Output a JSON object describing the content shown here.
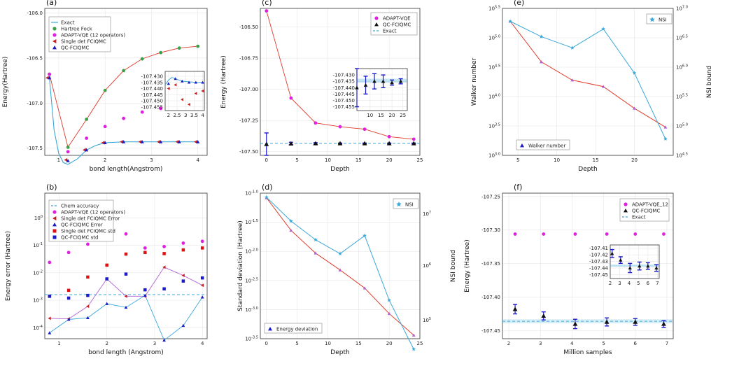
{
  "colors": {
    "exact": "#3aa8d8",
    "hf": "#3aa04a",
    "adapt": "#e020e0",
    "singledet": "#c81e1e",
    "qc": "#1a1ac8",
    "red_line": "#e03a2a",
    "blue_line": "#3aa8d8",
    "purple_line": "#b060d0",
    "black": "#111111",
    "red_sq": "#dd1111"
  },
  "chart_data": [
    {
      "panel": "(a)",
      "type": "line",
      "xlabel": "bond length(Angstrom)",
      "ylabel": "Energy(Hartree)",
      "xlim": [
        0.7,
        4.2
      ],
      "ylim": [
        -107.58,
        -105.95
      ],
      "xticks": [
        1,
        2,
        3,
        4
      ],
      "yticks": [
        -106.0,
        -106.5,
        -107.0,
        -107.5
      ],
      "ytick_labels": [
        "-106.0",
        "-106.5",
        "-107.0",
        "-107.5"
      ],
      "legend": [
        "Exact",
        "Hartree Fock",
        "ADAPT-VQE (12 operators)",
        "Single det FCIQMC",
        "QC-FCIQMC"
      ],
      "series": [
        {
          "name": "Exact",
          "kind": "line",
          "x": [
            0.8,
            0.9,
            1.0,
            1.1,
            1.2,
            1.4,
            1.6,
            1.8,
            2.0,
            2.4,
            2.8,
            3.2,
            3.6,
            4.0
          ],
          "y": [
            -106.72,
            -107.3,
            -107.56,
            -107.66,
            -107.68,
            -107.62,
            -107.52,
            -107.47,
            -107.44,
            -107.43,
            -107.43,
            -107.43,
            -107.43,
            -107.43
          ]
        },
        {
          "name": "Hartree Fock",
          "kind": "line-dots",
          "x": [
            0.8,
            1.2,
            1.6,
            2.0,
            2.4,
            2.8,
            3.2,
            3.6,
            4.0
          ],
          "y": [
            -106.68,
            -107.49,
            -107.18,
            -106.86,
            -106.64,
            -106.51,
            -106.44,
            -106.39,
            -106.37
          ]
        },
        {
          "name": "ADAPT-VQE (12 operators)",
          "kind": "dots",
          "x": [
            0.8,
            1.2,
            1.6,
            2.0,
            2.4,
            2.8,
            3.2,
            3.6,
            4.0
          ],
          "y": [
            -106.68,
            -107.54,
            -107.39,
            -107.26,
            -107.17,
            -107.1,
            -107.06,
            -107.03,
            -107.01
          ]
        },
        {
          "name": "Single det FCIQMC",
          "kind": "tri-left",
          "x": [
            0.8,
            1.2,
            1.6,
            2.0,
            2.4,
            2.8,
            3.2,
            3.6,
            4.0
          ],
          "y": [
            -106.72,
            -107.63,
            -107.52,
            -107.44,
            -107.43,
            -107.43,
            -107.43,
            -107.43,
            -107.43
          ]
        },
        {
          "name": "QC-FCIQMC",
          "kind": "tri-up",
          "x": [
            0.8,
            1.2,
            1.6,
            2.0,
            2.4,
            2.8,
            3.2,
            3.6,
            4.0
          ],
          "y": [
            -106.72,
            -107.64,
            -107.52,
            -107.44,
            -107.43,
            -107.43,
            -107.43,
            -107.43,
            -107.43
          ]
        }
      ],
      "inset": {
        "xlim": [
          1.8,
          4.1
        ],
        "ylim": [
          -107.458,
          -107.426
        ],
        "xticks": [
          2.0,
          2.5,
          3.0,
          3.5,
          4.0
        ],
        "yticks": [
          -107.43,
          -107.435,
          -107.44,
          -107.445,
          -107.45,
          -107.455
        ],
        "ytick_labels": [
          "-107.430",
          "-107.435",
          "-107.440",
          "-107.445",
          "-107.450",
          "-107.455"
        ],
        "exact": {
          "x": [
            1.8,
            2.0,
            2.2,
            2.4,
            2.6,
            2.8,
            3.2,
            3.6,
            4.0
          ],
          "y": [
            -107.437,
            -107.433,
            -107.431,
            -107.432,
            -107.433,
            -107.434,
            -107.4345,
            -107.435,
            -107.435
          ]
        },
        "qc": {
          "x": [
            2.0,
            2.4,
            2.8,
            3.2,
            3.6,
            4.0
          ],
          "y": [
            -107.436,
            -107.432,
            -107.434,
            -107.435,
            -107.435,
            -107.435
          ]
        },
        "singledet": {
          "x": [
            2.0,
            2.4,
            2.8,
            3.2,
            3.6,
            4.0
          ],
          "y": [
            -107.44,
            -107.437,
            -107.449,
            -107.453,
            -107.444,
            -107.442
          ]
        }
      }
    },
    {
      "panel": "(b)",
      "type": "scatter-log",
      "xlabel": "bond length (Angstrom)",
      "ylabel": "Energy error (Hartree)",
      "xlim": [
        0.7,
        4.1
      ],
      "ylog": [
        -4.4,
        0.9
      ],
      "xticks": [
        1,
        2,
        3,
        4
      ],
      "yticks": [
        -4,
        -3,
        -2,
        -1,
        0
      ],
      "legend": [
        "Chem accuracy",
        "ADAPT-VQE (12 operators)",
        "Single det FCIQMC Error",
        "QC-FCIQMC Error",
        "Single det FCIQMC std",
        "QC-FCIQMC std"
      ],
      "chem_accuracy": 0.0016,
      "x": [
        0.8,
        1.2,
        1.6,
        2.0,
        2.4,
        2.8,
        3.2,
        3.6,
        4.0
      ],
      "adapt": [
        0.024,
        0.055,
        0.11,
        0.18,
        0.26,
        0.08,
        0.09,
        0.12,
        0.14
      ],
      "singledet_err": [
        0.00022,
        0.00021,
        0.0006,
        0.006,
        0.0014,
        0.0014,
        0.016,
        0.008,
        0.0035
      ],
      "qc_err": [
        6.5e-05,
        0.0002,
        0.00023,
        0.00075,
        0.00055,
        0.0015,
        3.5e-05,
        0.00012,
        0.0013
      ],
      "singledet_std": [
        0.0014,
        0.0023,
        0.007,
        0.019,
        0.048,
        0.055,
        0.05,
        0.068,
        0.08
      ],
      "qc_std": [
        0.0014,
        0.0012,
        0.0015,
        0.006,
        0.009,
        0.0024,
        0.0026,
        0.005,
        0.0065
      ]
    },
    {
      "panel": "(c)",
      "type": "line",
      "xlabel": "Depth",
      "ylabel": "Energy (Hartree)",
      "xlim": [
        -1,
        25
      ],
      "ylim": [
        -107.53,
        -106.35
      ],
      "xticks": [
        0,
        5,
        10,
        15,
        20,
        25
      ],
      "yticks": [
        -106.5,
        -106.75,
        -107.0,
        -107.25,
        -107.5
      ],
      "ytick_labels": [
        "-106.50",
        "-106.75",
        "-107.00",
        "-107.25",
        "-107.50"
      ],
      "legend": [
        "ADAPT-VQE",
        "QC-FCIQMC",
        "Exact"
      ],
      "exact": -107.434,
      "adapt": {
        "x": [
          0,
          4,
          8,
          12,
          16,
          20,
          24
        ],
        "y": [
          -106.37,
          -107.07,
          -107.27,
          -107.3,
          -107.32,
          -107.38,
          -107.4
        ]
      },
      "qc": {
        "x": [
          0,
          4,
          8,
          12,
          16,
          20,
          24
        ],
        "y": [
          -107.44,
          -107.435,
          -107.434,
          -107.434,
          -107.434,
          -107.434,
          -107.434
        ],
        "err": [
          0.09,
          0.01,
          0.006,
          0.003,
          0.003,
          0.003,
          0.003
        ]
      },
      "inset": {
        "xlim": [
          4,
          27
        ],
        "ylim": [
          -107.458,
          -107.425
        ],
        "xticks": [
          10,
          15,
          20,
          25
        ],
        "yticks": [
          -107.43,
          -107.435,
          -107.44,
          -107.445,
          -107.45,
          -107.455
        ],
        "ytick_labels": [
          "-107.430",
          "-107.435",
          "-107.440",
          "-107.445",
          "-107.450",
          "-107.455"
        ],
        "x": [
          4,
          8,
          12,
          16,
          20,
          24
        ],
        "y": [
          -107.44,
          -107.438,
          -107.435,
          -107.435,
          -107.436,
          -107.435
        ],
        "err": [
          0.015,
          0.007,
          0.006,
          0.005,
          0.002,
          0.002
        ]
      }
    },
    {
      "panel": "(e)",
      "type": "line-dual",
      "xlabel": "Depth",
      "ylabel": "Walker number",
      "y2label": "NSI bound",
      "xlim": [
        3,
        25
      ],
      "ylog": [
        3.0,
        5.5
      ],
      "y2log": [
        4.5,
        7.0
      ],
      "xticks": [
        5,
        10,
        15,
        20
      ],
      "yticks": [
        3.0,
        3.5,
        4.0,
        4.5,
        5.0,
        5.5
      ],
      "y2ticks": [
        4.5,
        5.0,
        5.5,
        6.0,
        6.5,
        7.0
      ],
      "legend_left": "Walker number",
      "legend_right": "NSI",
      "walker": {
        "x": [
          4,
          8,
          12,
          16,
          20,
          24
        ],
        "logy": [
          5.28,
          4.59,
          4.28,
          4.17,
          3.8,
          3.48
        ]
      },
      "nsi": {
        "x": [
          4,
          8,
          12,
          16,
          20,
          24
        ],
        "logy": [
          6.78,
          6.52,
          6.33,
          6.65,
          5.9,
          4.78
        ]
      }
    },
    {
      "panel": "(d)",
      "type": "line-dual",
      "xlabel": "Depth",
      "ylabel": "Standard deviation (Hartree)",
      "y2label": "NSI bound",
      "xlim": [
        -1,
        25
      ],
      "ylog": [
        -3.5,
        -1.0
      ],
      "xticks": [
        0,
        5,
        10,
        15,
        20,
        25
      ],
      "yticks": [
        -1.0,
        -1.5,
        -2.0,
        -2.5,
        -3.0,
        -3.5
      ],
      "y2ticks_text": [
        "10^7",
        "10^6",
        "10^5"
      ],
      "legend_left": "Energy deviation",
      "legend_right": "NSI",
      "deviation": {
        "x": [
          0,
          4,
          8,
          12,
          16,
          20,
          24
        ],
        "logy": [
          -1.08,
          -1.64,
          -2.03,
          -2.32,
          -2.63,
          -3.07,
          -3.44
        ]
      },
      "nsi": {
        "x": [
          0,
          4,
          8,
          12,
          16,
          20,
          24
        ],
        "logy": [
          -1.07,
          -1.48,
          -1.8,
          -2.04,
          -1.73,
          -2.84,
          -3.68
        ]
      }
    },
    {
      "panel": "(f)",
      "type": "scatter",
      "xlabel": "Million samples",
      "ylabel": "Energy (Hartree)",
      "xlim": [
        1.8,
        7.2
      ],
      "ylim": [
        -107.462,
        -107.245
      ],
      "xticks": [
        2,
        3,
        4,
        5,
        6,
        7
      ],
      "yticks": [
        -107.25,
        -107.3,
        -107.35,
        -107.4,
        -107.45
      ],
      "ytick_labels": [
        "-107.25",
        "-107.30",
        "-107.35",
        "-107.40",
        "-107.45"
      ],
      "legend": [
        "ADAPT-VQE_12",
        "QC-FCIQMC",
        "Exact"
      ],
      "exact": -107.436,
      "adapt": {
        "x": [
          2.2,
          3.1,
          4.1,
          5.1,
          6.0,
          6.9
        ],
        "y": [
          -107.306,
          -107.306,
          -107.306,
          -107.306,
          -107.306,
          -107.306
        ]
      },
      "qc": {
        "x": [
          2.2,
          3.1,
          4.1,
          5.1,
          6.0,
          6.9
        ],
        "y": [
          -107.418,
          -107.428,
          -107.44,
          -107.437,
          -107.437,
          -107.44
        ],
        "err": [
          0.007,
          0.006,
          0.007,
          0.006,
          0.005,
          0.005
        ]
      },
      "inset": {
        "xlim": [
          2,
          7.2
        ],
        "ylim": [
          -107.456,
          -107.405
        ],
        "xticks": [
          2,
          3,
          4,
          5,
          6,
          7
        ],
        "yticks": [
          -107.41,
          -107.42,
          -107.43,
          -107.44,
          -107.45
        ],
        "ytick_labels": [
          "-107.41",
          "-107.42",
          "-107.43",
          "-107.44",
          "-107.45"
        ],
        "x": [
          2.2,
          3.1,
          4.1,
          5.1,
          6.0,
          6.9
        ],
        "y": [
          -107.418,
          -107.428,
          -107.44,
          -107.437,
          -107.437,
          -107.44
        ],
        "err": [
          0.006,
          0.005,
          0.007,
          0.006,
          0.005,
          0.005
        ]
      }
    }
  ]
}
